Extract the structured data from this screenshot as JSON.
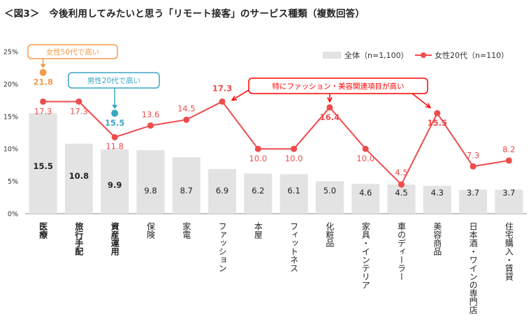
{
  "title": "＜図3＞　今後利用してみたいと思う「リモート接客」のサービス種類（複数回答）",
  "colors": {
    "bar": "#e3e3e3",
    "line": "#ee4c4c",
    "orange": "#f39b4a",
    "teal": "#3aa6c4",
    "axis": "#888888",
    "text": "#222222"
  },
  "chart_data": {
    "type": "bar",
    "title": "＜図3＞　今後利用してみたいと思う「リモート接客」のサービス種類（複数回答）",
    "xlabel": "",
    "ylabel": "",
    "ylim": [
      0,
      25
    ],
    "yticks": [
      0,
      5,
      10,
      15,
      20,
      25
    ],
    "ytick_labels": [
      "0%",
      "5%",
      "10%",
      "15%",
      "20%",
      "25%"
    ],
    "categories": [
      "医療",
      "旅行手配",
      "資産運用",
      "保険",
      "家電",
      "ファッション",
      "本屋",
      "フィットネス",
      "化粧品",
      "家具・インテリア",
      "車のディーラー",
      "美容商品",
      "日本酒・ワインの専門店",
      "住宅購入・賃貸"
    ],
    "bold_categories": [
      "医療",
      "旅行手配",
      "資産運用"
    ],
    "series": [
      {
        "name": "全体（n=1,100）",
        "kind": "bar",
        "values": [
          15.5,
          10.8,
          9.9,
          9.8,
          8.7,
          6.9,
          6.2,
          6.1,
          5.0,
          4.6,
          4.5,
          4.3,
          3.7,
          3.7
        ],
        "labels": [
          "15.5",
          "10.8",
          "9.9",
          "9.8",
          "8.7",
          "6.9",
          "6.2",
          "6.1",
          "5.0",
          "4.6",
          "4.5",
          "4.3",
          "3.7",
          "3.7"
        ],
        "bold_labels": [
          "15.5",
          "10.8",
          "9.9"
        ]
      },
      {
        "name": "女性20代（n=110）",
        "kind": "line",
        "values": [
          17.3,
          17.3,
          11.8,
          13.6,
          14.5,
          17.3,
          10.0,
          10.0,
          16.4,
          10.0,
          4.5,
          15.5,
          7.3,
          8.2
        ],
        "labels": [
          "17.3",
          "17.3",
          "11.8",
          "13.6",
          "14.5",
          "17.3",
          "10.0",
          "10.0",
          "16.4",
          "10.0",
          "4.5",
          "15.5",
          "7.3",
          "8.2"
        ],
        "bold_labels": [
          "17.3@5",
          "16.4@8",
          "15.5@11"
        ]
      },
      {
        "name": "女性50代",
        "kind": "marker",
        "category": "医療",
        "value": 21.8,
        "label": "21.8"
      },
      {
        "name": "男性20代",
        "kind": "marker",
        "category": "資産運用",
        "value": 15.5,
        "label": "15.5"
      }
    ],
    "legend": {
      "position": "top-right",
      "entries": [
        "全体（n=1,100）",
        "女性20代（n=110）"
      ]
    },
    "annotations": [
      {
        "text": "女性50代で高い",
        "color": "orange",
        "targets": [
          "医療"
        ]
      },
      {
        "text": "男性20代で高い",
        "color": "teal",
        "targets": [
          "資産運用"
        ]
      },
      {
        "text": "特にファッション・美容関連項目が高い",
        "color": "red",
        "targets": [
          "ファッション",
          "化粧品",
          "美容商品"
        ]
      }
    ]
  }
}
